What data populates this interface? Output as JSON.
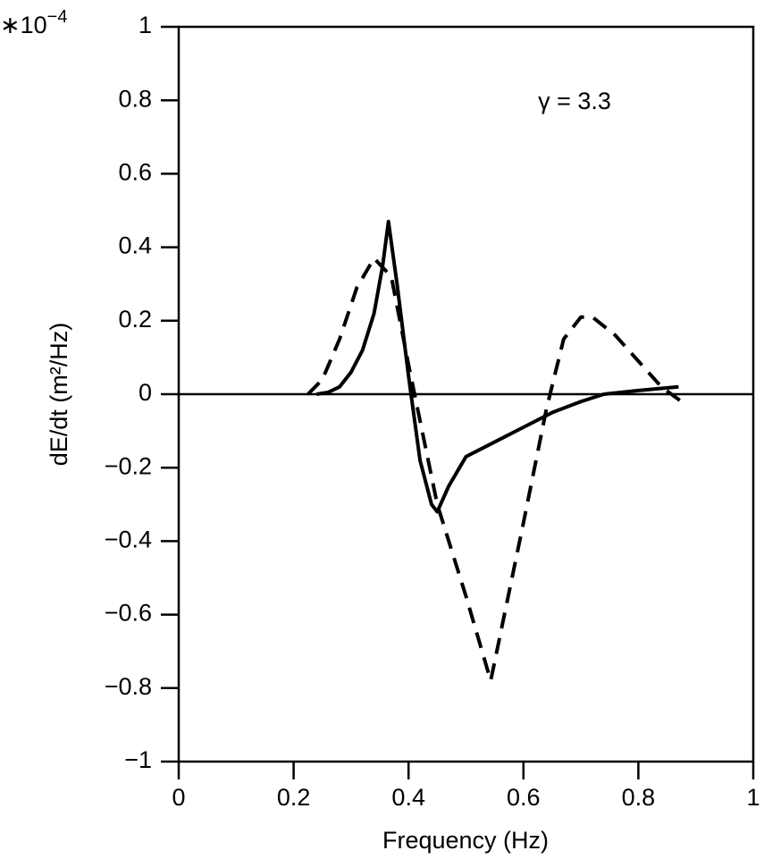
{
  "chart_data": {
    "type": "line",
    "annotation": "γ = 3.3",
    "xlabel": "Frequency (Hz)",
    "ylabel": "dE/dt  (m²/Hz)",
    "axis_multiplier": {
      "base": "∗10",
      "exponent": "−4"
    },
    "xlim": [
      0,
      1
    ],
    "xticks": [
      0,
      0.2,
      0.4,
      0.6,
      0.8,
      1
    ],
    "ylim": [
      -1,
      1
    ],
    "yticks": [
      {
        "value": -1,
        "label": "−1"
      },
      {
        "value": -0.8,
        "label": "−0.8"
      },
      {
        "value": -0.6,
        "label": "−0.6"
      },
      {
        "value": -0.4,
        "label": "−0.4"
      },
      {
        "value": -0.2,
        "label": "−0.2"
      },
      0,
      0.2,
      0.4,
      0.6,
      0.8,
      1
    ],
    "zero_line": true,
    "series": [
      {
        "color": "#000000",
        "dash": "solid",
        "x": [
          0.24,
          0.26,
          0.28,
          0.3,
          0.32,
          0.34,
          0.355,
          0.365,
          0.38,
          0.4,
          0.42,
          0.44,
          0.45,
          0.47,
          0.5,
          0.55,
          0.6,
          0.65,
          0.7,
          0.74,
          0.8,
          0.87
        ],
        "values": [
          0,
          0.005,
          0.02,
          0.06,
          0.12,
          0.22,
          0.35,
          0.47,
          0.3,
          0.05,
          -0.18,
          -0.3,
          -0.32,
          -0.25,
          -0.17,
          -0.13,
          -0.09,
          -0.05,
          -0.02,
          0,
          0.01,
          0.02
        ]
      },
      {
        "color": "#000000",
        "dash": "dashed",
        "x": [
          0.225,
          0.25,
          0.28,
          0.31,
          0.34,
          0.37,
          0.4,
          0.45,
          0.5,
          0.543,
          0.6,
          0.64,
          0.67,
          0.7,
          0.72,
          0.76,
          0.8,
          0.84,
          0.875
        ],
        "values": [
          0,
          0.04,
          0.15,
          0.29,
          0.37,
          0.32,
          0.08,
          -0.3,
          -0.55,
          -0.78,
          -0.35,
          -0.04,
          0.15,
          0.21,
          0.21,
          0.16,
          0.09,
          0.02,
          -0.02
        ]
      }
    ]
  }
}
